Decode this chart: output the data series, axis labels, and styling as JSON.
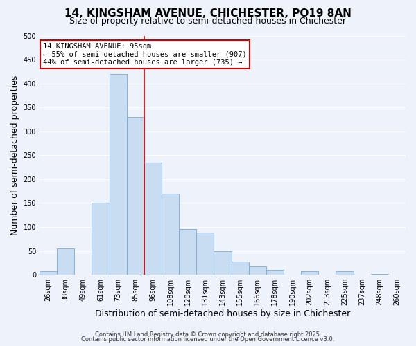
{
  "title": "14, KINGSHAM AVENUE, CHICHESTER, PO19 8AN",
  "subtitle": "Size of property relative to semi-detached houses in Chichester",
  "xlabel": "Distribution of semi-detached houses by size in Chichester",
  "ylabel": "Number of semi-detached properties",
  "categories": [
    "26sqm",
    "38sqm",
    "49sqm",
    "61sqm",
    "73sqm",
    "85sqm",
    "96sqm",
    "108sqm",
    "120sqm",
    "131sqm",
    "143sqm",
    "155sqm",
    "166sqm",
    "178sqm",
    "190sqm",
    "202sqm",
    "213sqm",
    "225sqm",
    "237sqm",
    "248sqm",
    "260sqm"
  ],
  "values": [
    7,
    55,
    0,
    150,
    420,
    330,
    235,
    170,
    95,
    88,
    50,
    27,
    18,
    10,
    0,
    8,
    0,
    8,
    0,
    2,
    0
  ],
  "bar_color": "#c9ddf2",
  "bar_edge_color": "#7baad4",
  "vline_color": "#cc0000",
  "vline_x": 5.5,
  "annotation_line1": "14 KINGSHAM AVENUE: 95sqm",
  "annotation_line2": "← 55% of semi-detached houses are smaller (907)",
  "annotation_line3": "44% of semi-detached houses are larger (735) →",
  "annotation_box_color": "#ffffff",
  "annotation_box_edge_color": "#cc0000",
  "ylim": [
    0,
    500
  ],
  "yticks": [
    0,
    50,
    100,
    150,
    200,
    250,
    300,
    350,
    400,
    450,
    500
  ],
  "background_color": "#eef2fb",
  "grid_color": "#ffffff",
  "footer_line1": "Contains HM Land Registry data © Crown copyright and database right 2025.",
  "footer_line2": "Contains public sector information licensed under the Open Government Licence v3.0.",
  "title_fontsize": 11,
  "subtitle_fontsize": 9,
  "axis_label_fontsize": 9,
  "tick_fontsize": 7,
  "annotation_fontsize": 7.5,
  "footer_fontsize": 6
}
